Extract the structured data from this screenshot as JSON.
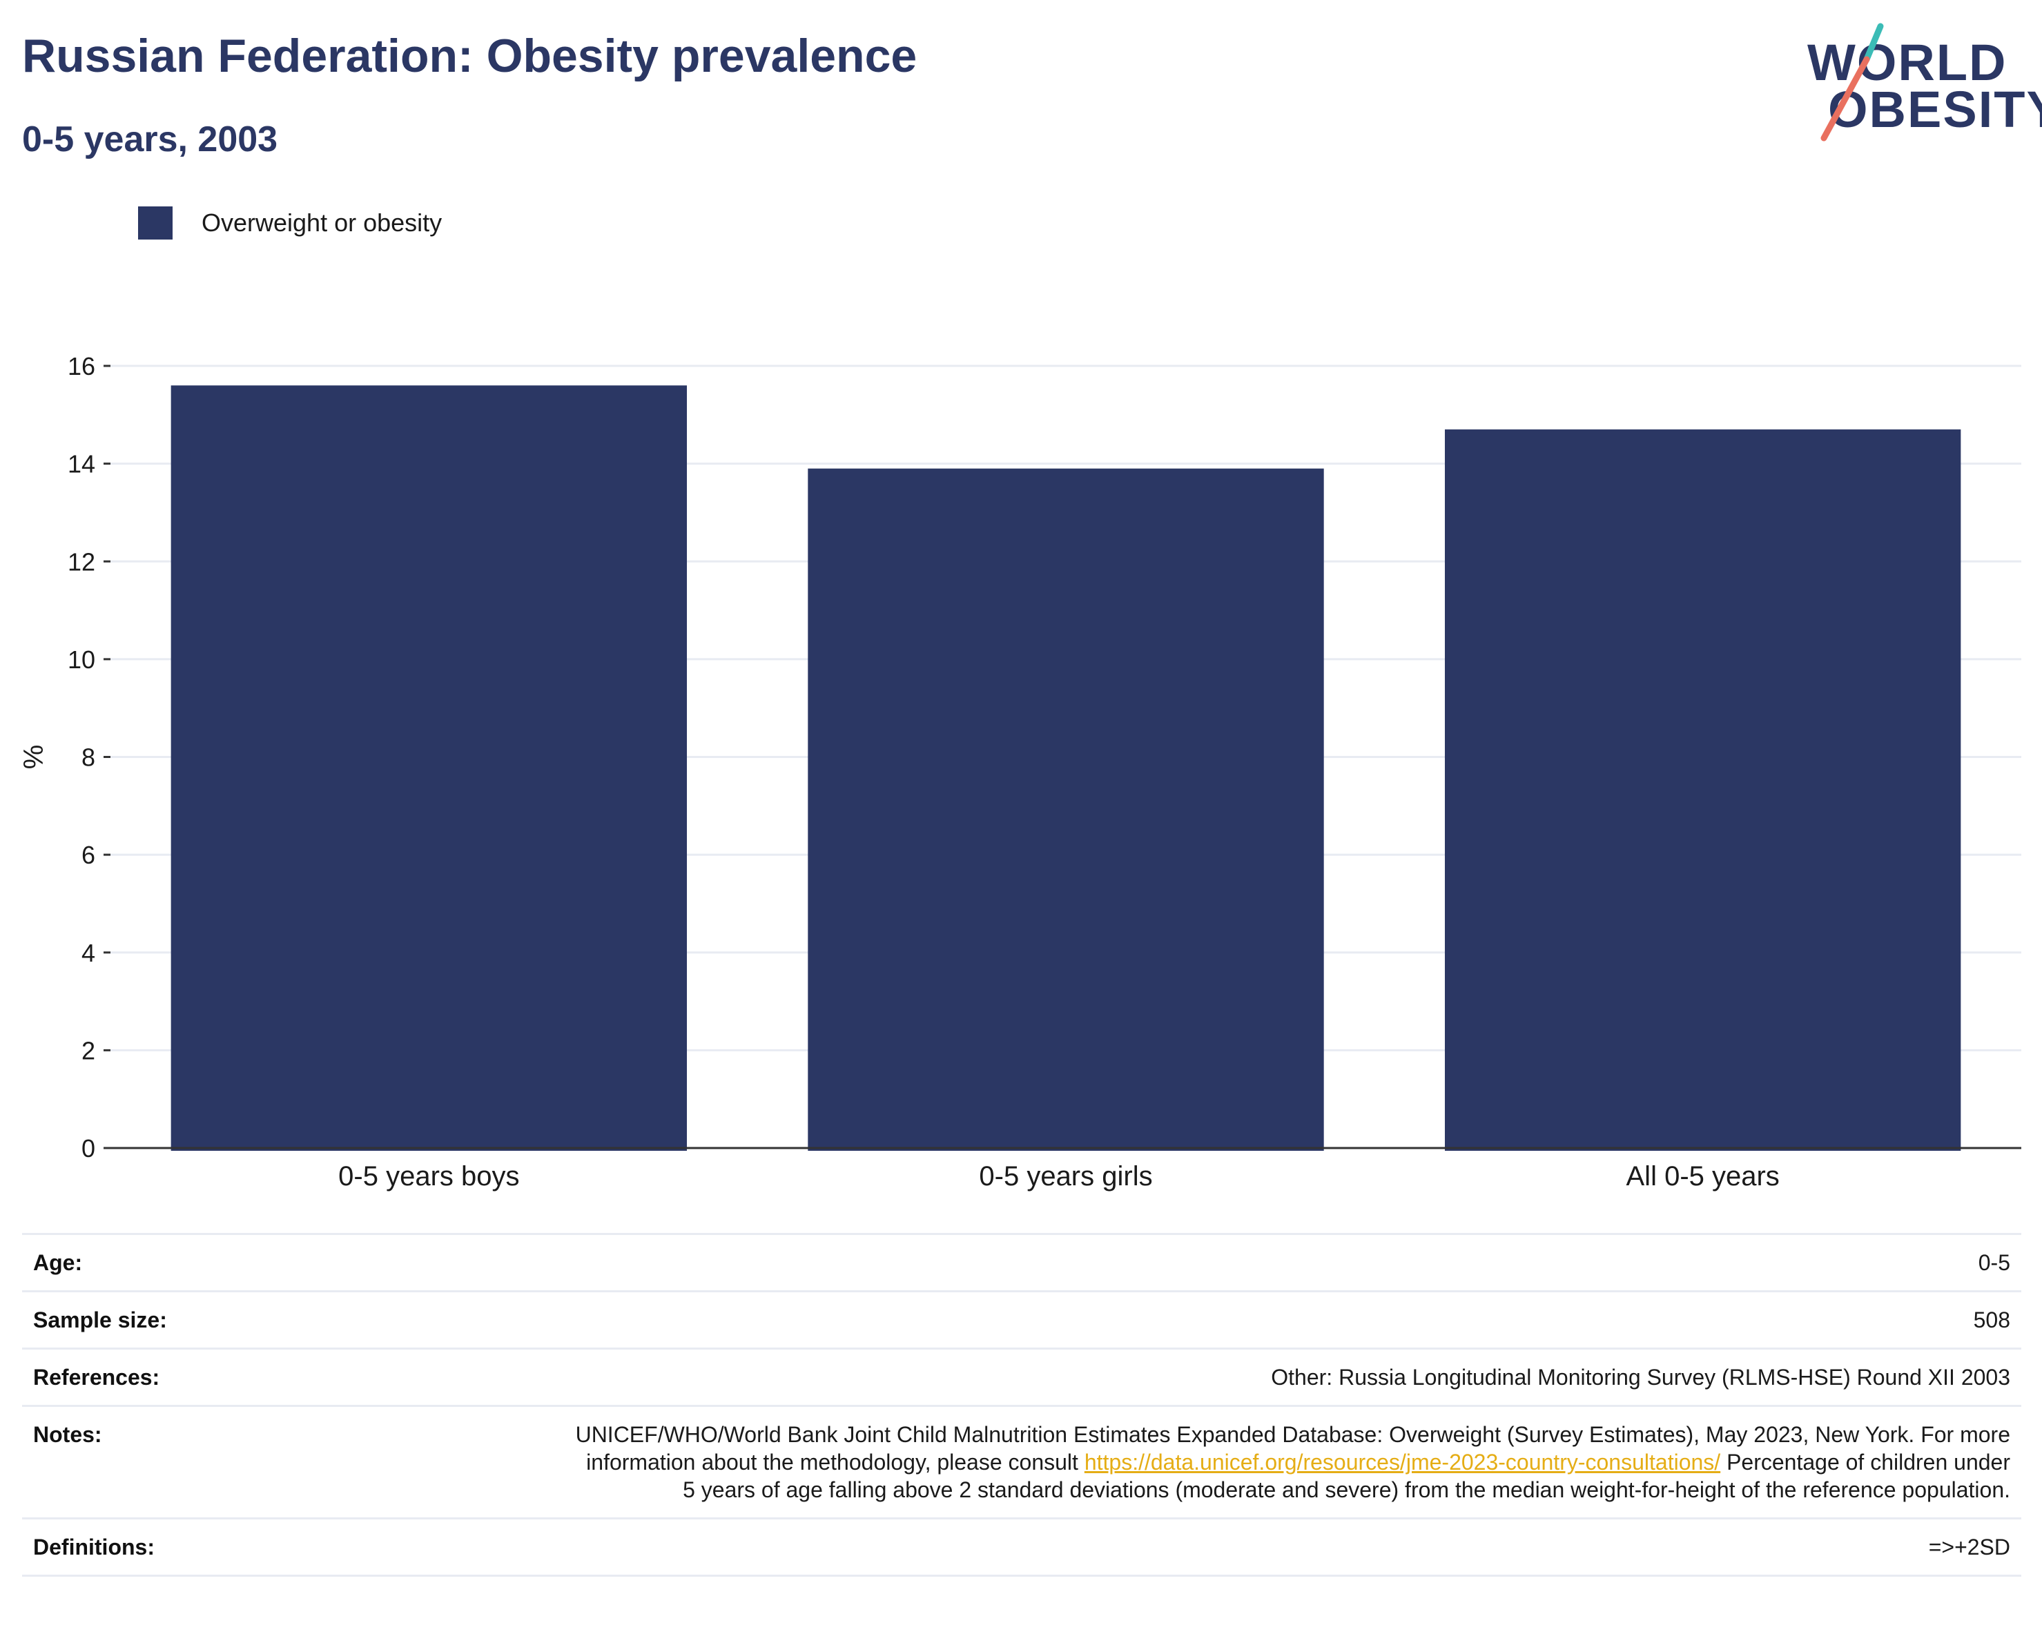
{
  "header": {
    "title": "Russian Federation: Obesity prevalence",
    "subtitle": "0-5 years, 2003"
  },
  "logo": {
    "line1": "WORLD",
    "line2": "OBESITY",
    "slash_top_color": "#3bbcb6",
    "slash_bottom_color": "#e9705f"
  },
  "colors": {
    "bar": "#2b3764",
    "title": "#2b3764",
    "link": "#e5ad15",
    "grid": "#e8ebf2"
  },
  "chart_data": {
    "type": "bar",
    "categories": [
      "0-5 years boys",
      "0-5 years girls",
      "All 0-5 years"
    ],
    "series": [
      {
        "name": "Overweight or obesity",
        "values": [
          15.6,
          13.9,
          14.7
        ]
      }
    ],
    "xlabel": "",
    "ylabel": "%",
    "ylim": [
      0,
      16
    ],
    "yticks": [
      0,
      2,
      4,
      6,
      8,
      10,
      12,
      14,
      16
    ],
    "ytick_labels": [
      "0",
      "2",
      "4",
      "6",
      "8",
      "10",
      "12",
      "14",
      "16"
    ],
    "grid": true,
    "legend_position": "top-left"
  },
  "info": {
    "age_label": "Age:",
    "age_value": "0-5",
    "sample_label": "Sample size:",
    "sample_value": "508",
    "references_label": "References:",
    "references_value": "Other: Russia Longitudinal Monitoring Survey (RLMS-HSE) Round XII 2003",
    "notes_label": "Notes:",
    "notes_text_1": "UNICEF/WHO/World Bank Joint Child Malnutrition Estimates Expanded Database: Overweight (Survey Estimates), May 2023, New York. For more information about the methodology, please consult ",
    "notes_link": "https://data.unicef.org/resources/jme-2023-country-consultations/",
    "notes_text_2": " Percentage of children under 5 years of age falling above 2 standard deviations (moderate and severe) from the median weight-for-height of the reference population.",
    "definitions_label": "Definitions:",
    "definitions_value": "=>+2SD"
  }
}
